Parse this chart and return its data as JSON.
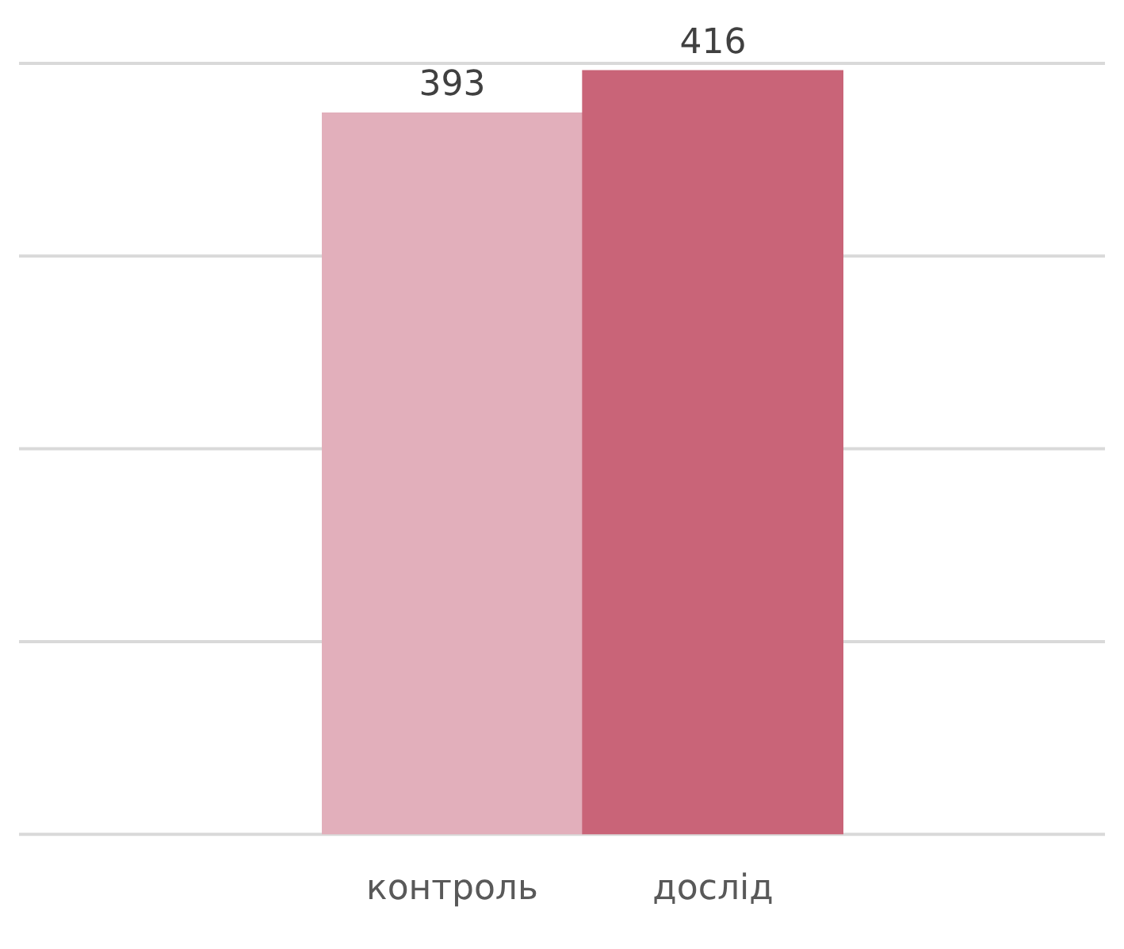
{
  "chart_data": {
    "type": "bar",
    "categories": [
      "контроль",
      "дослід"
    ],
    "values": [
      393,
      416
    ],
    "colors": [
      "#e2afbb",
      "#c96478"
    ],
    "data_labels": true,
    "grid": "y",
    "ylim": [
      0,
      420
    ],
    "yticks": [
      {
        "value": 0,
        "label": null
      },
      {
        "value": 105,
        "label": null
      },
      {
        "value": 210,
        "label": null
      },
      {
        "value": 315,
        "label": null
      },
      {
        "value": 420,
        "label": null
      }
    ],
    "tick_labels": "x"
  }
}
